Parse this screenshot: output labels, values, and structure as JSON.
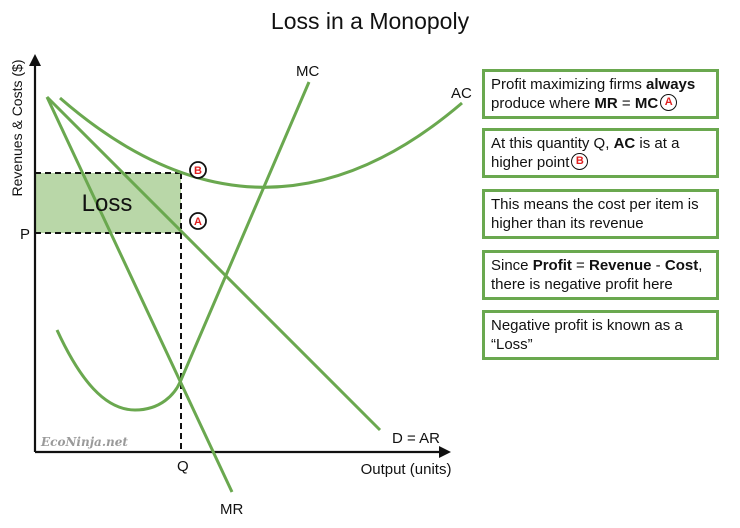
{
  "title": "Loss in a Monopoly",
  "axes": {
    "y_label": "Revenues & Costs ($)",
    "x_label": "Output (units)",
    "price_label": "P",
    "quantity_label": "Q"
  },
  "curves": {
    "mc": "MC",
    "ac": "AC",
    "mr": "MR",
    "demand": "D = AR"
  },
  "region_label": "Loss",
  "points": {
    "a": "A",
    "b": "B"
  },
  "watermark": "EcoNinja.net",
  "colors": {
    "curve": "#6aa84f",
    "loss_fill": "#b9d7a8",
    "badge_letter": "#e02020",
    "axis": "#111111"
  },
  "notes": [
    {
      "pre": "Profit maximizing firms ",
      "bold1": "always",
      "mid": " produce where ",
      "bold2": "MR",
      "mid2": " = ",
      "bold3": "MC",
      "badge": "A"
    },
    {
      "pre": "At this quantity Q, ",
      "bold1": "AC",
      "mid": " is at a higher point",
      "badge": "B"
    },
    {
      "text": "This means the cost per item is higher than its revenue"
    },
    {
      "pre": "Since ",
      "bold1": "Profit",
      "mid": " = ",
      "bold2": "Revenue",
      "mid2": " - ",
      "bold3": "Cost",
      "post": ", there is negative profit here"
    },
    {
      "text": "Negative profit is known as a “Loss”"
    }
  ]
}
